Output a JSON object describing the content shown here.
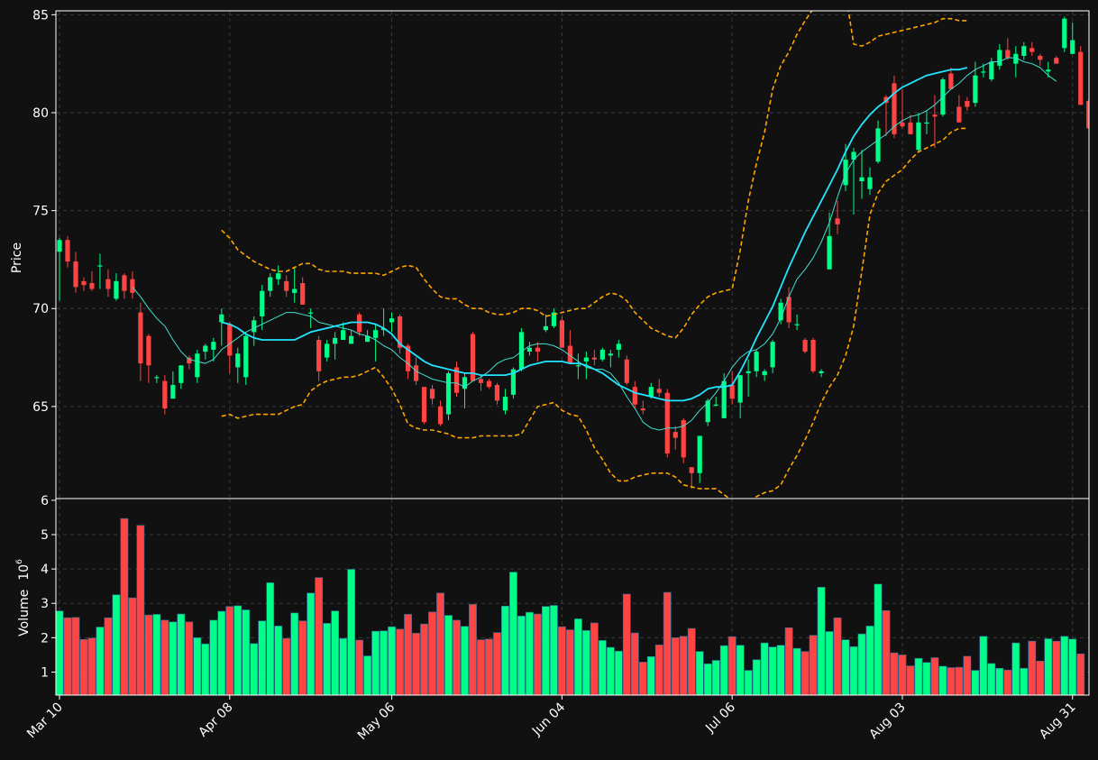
{
  "chart_data": {
    "type": "candlestick",
    "style": {
      "background": "#111111",
      "up_color": "#00ff88",
      "down_color": "#ff4444",
      "ma_fast_color": "#40e0d0",
      "ma_slow_color": "#22e5ff",
      "band_color": "#ffa500",
      "grid": true,
      "grid_style": "dashed"
    },
    "price_axis": {
      "ylabel": "Price",
      "ylim": [
        60.3,
        85.2
      ],
      "ticks": [
        "65",
        "70",
        "75",
        "80",
        "85"
      ]
    },
    "volume_axis": {
      "ylabel": "Volume",
      "ylabel_exp": "10",
      "ylabel_exp_power": "6",
      "ylim": [
        0.33,
        6.05
      ],
      "ticks": [
        "1",
        "2",
        "3",
        "4",
        "5",
        "6"
      ]
    },
    "x_axis": {
      "ticks": [
        {
          "label": "Mar 10",
          "index": 0
        },
        {
          "label": "Apr 08",
          "index": 21
        },
        {
          "label": "May 06",
          "index": 41
        },
        {
          "label": "Jun 04",
          "index": 62
        },
        {
          "label": "Jul 06",
          "index": 83
        },
        {
          "label": "Aug 03",
          "index": 104
        },
        {
          "label": "Aug 31",
          "index": 125
        }
      ]
    },
    "candles": [
      [
        72.9,
        73.6,
        70.4,
        73.5
      ],
      [
        73.5,
        73.7,
        72.1,
        72.4
      ],
      [
        72.4,
        72.9,
        70.8,
        71.1
      ],
      [
        71.4,
        71.6,
        70.9,
        71.2
      ],
      [
        71.3,
        71.9,
        70.9,
        71.0
      ],
      [
        72.2,
        72.8,
        71.0,
        72.2
      ],
      [
        71.5,
        72.0,
        70.6,
        71.0
      ],
      [
        70.5,
        71.8,
        70.4,
        71.4
      ],
      [
        71.7,
        71.8,
        70.5,
        70.9
      ],
      [
        71.5,
        71.9,
        70.5,
        70.8
      ],
      [
        69.8,
        70.3,
        66.3,
        67.2
      ],
      [
        68.6,
        68.7,
        66.2,
        67.1
      ],
      [
        66.5,
        66.6,
        66.2,
        66.5
      ],
      [
        66.3,
        66.6,
        64.6,
        64.9
      ],
      [
        65.4,
        66.8,
        65.4,
        66.1
      ],
      [
        66.2,
        67.1,
        65.9,
        67.1
      ],
      [
        67.5,
        67.6,
        66.9,
        67.2
      ],
      [
        66.5,
        67.9,
        66.2,
        67.7
      ],
      [
        67.8,
        68.2,
        67.4,
        68.1
      ],
      [
        67.9,
        68.5,
        67.3,
        68.3
      ],
      [
        69.3,
        70.0,
        68.1,
        69.7
      ],
      [
        69.2,
        69.3,
        66.7,
        67.6
      ],
      [
        67.0,
        68.0,
        66.2,
        67.7
      ],
      [
        66.5,
        68.8,
        66.1,
        68.6
      ],
      [
        68.8,
        69.6,
        68.1,
        69.4
      ],
      [
        69.6,
        71.2,
        68.9,
        70.9
      ],
      [
        70.9,
        71.8,
        70.6,
        71.6
      ],
      [
        71.5,
        72.2,
        71.2,
        71.8
      ],
      [
        71.4,
        71.7,
        70.6,
        70.9
      ],
      [
        70.8,
        72.1,
        70.3,
        71.0
      ],
      [
        71.3,
        71.6,
        70.4,
        70.2
      ],
      [
        69.8,
        70.0,
        69.0,
        69.8
      ],
      [
        68.4,
        68.6,
        66.3,
        66.8
      ],
      [
        67.5,
        68.4,
        67.3,
        68.2
      ],
      [
        68.2,
        68.8,
        67.4,
        68.5
      ],
      [
        68.4,
        69.3,
        68.4,
        68.9
      ],
      [
        68.2,
        68.9,
        68.2,
        68.6
      ],
      [
        69.7,
        69.8,
        68.6,
        68.8
      ],
      [
        68.3,
        68.9,
        68.3,
        68.6
      ],
      [
        68.5,
        69.2,
        67.3,
        68.9
      ],
      [
        68.9,
        70.0,
        68.6,
        69.0
      ],
      [
        69.3,
        69.8,
        68.8,
        69.5
      ],
      [
        69.6,
        69.7,
        67.7,
        68.0
      ],
      [
        68.1,
        68.2,
        66.4,
        66.8
      ],
      [
        67.1,
        67.5,
        66.1,
        66.3
      ],
      [
        66.0,
        66.0,
        64.1,
        64.2
      ],
      [
        65.9,
        66.1,
        65.1,
        65.4
      ],
      [
        65.0,
        65.3,
        64.0,
        64.1
      ],
      [
        64.6,
        66.8,
        64.3,
        66.7
      ],
      [
        67.0,
        67.3,
        65.5,
        65.7
      ],
      [
        65.9,
        66.7,
        64.9,
        66.5
      ],
      [
        68.7,
        68.8,
        66.3,
        66.3
      ],
      [
        66.4,
        66.6,
        65.8,
        66.2
      ],
      [
        66.3,
        66.4,
        65.9,
        66.0
      ],
      [
        66.1,
        66.2,
        65.1,
        65.3
      ],
      [
        64.8,
        65.9,
        64.6,
        65.5
      ],
      [
        65.6,
        67.0,
        65.4,
        66.9
      ],
      [
        66.9,
        69.0,
        66.8,
        68.8
      ],
      [
        67.8,
        68.3,
        67.6,
        68.0
      ],
      [
        68.0,
        68.3,
        67.3,
        67.8
      ],
      [
        68.9,
        69.7,
        68.8,
        69.1
      ],
      [
        69.1,
        70.0,
        69.0,
        69.8
      ],
      [
        69.4,
        69.6,
        68.0,
        68.0
      ],
      [
        68.1,
        68.9,
        67.4,
        67.2
      ],
      [
        67.1,
        67.7,
        66.4,
        67.1
      ],
      [
        67.3,
        67.8,
        66.4,
        67.5
      ],
      [
        67.5,
        67.9,
        67.1,
        67.4
      ],
      [
        67.4,
        68.0,
        67.3,
        67.9
      ],
      [
        67.6,
        67.9,
        67.0,
        67.7
      ],
      [
        67.9,
        68.4,
        67.5,
        68.2
      ],
      [
        67.4,
        67.6,
        66.1,
        66.2
      ],
      [
        66.0,
        66.3,
        64.9,
        65.1
      ],
      [
        64.9,
        65.3,
        64.6,
        64.8
      ],
      [
        65.5,
        66.2,
        65.4,
        66.0
      ],
      [
        65.9,
        66.4,
        65.5,
        65.7
      ],
      [
        65.7,
        65.9,
        62.4,
        62.6
      ],
      [
        63.7,
        64.0,
        62.8,
        63.4
      ],
      [
        64.3,
        64.4,
        62.1,
        62.4
      ],
      [
        61.9,
        61.9,
        60.8,
        61.6
      ],
      [
        61.6,
        63.4,
        61.1,
        63.5
      ],
      [
        64.2,
        65.4,
        64.0,
        65.3
      ],
      [
        65.1,
        65.5,
        65.0,
        65.1
      ],
      [
        64.4,
        66.7,
        64.4,
        66.3
      ],
      [
        66.1,
        66.8,
        65.1,
        65.4
      ],
      [
        65.2,
        66.6,
        64.4,
        66.6
      ],
      [
        66.7,
        67.4,
        65.5,
        66.8
      ],
      [
        66.8,
        67.9,
        66.5,
        67.8
      ],
      [
        66.6,
        66.9,
        66.3,
        66.8
      ],
      [
        67.0,
        68.4,
        66.7,
        68.3
      ],
      [
        69.4,
        70.5,
        69.2,
        70.3
      ],
      [
        70.6,
        71.1,
        69.0,
        69.3
      ],
      [
        69.2,
        69.7,
        68.9,
        69.2
      ],
      [
        68.4,
        68.5,
        67.7,
        67.8
      ],
      [
        68.4,
        68.5,
        66.7,
        66.8
      ],
      [
        66.7,
        66.9,
        66.5,
        66.8
      ],
      [
        72.0,
        74.9,
        72.0,
        73.7
      ],
      [
        74.6,
        75.5,
        73.8,
        74.3
      ],
      [
        76.3,
        78.4,
        76.0,
        77.6
      ],
      [
        77.6,
        78.2,
        74.8,
        78.0
      ],
      [
        76.5,
        78.1,
        75.6,
        76.7
      ],
      [
        76.1,
        77.2,
        75.8,
        76.7
      ],
      [
        77.5,
        79.6,
        77.4,
        79.2
      ],
      [
        80.8,
        80.9,
        78.8,
        80.5
      ],
      [
        81.5,
        81.9,
        78.7,
        78.9
      ],
      [
        79.5,
        81.2,
        79.2,
        79.3
      ],
      [
        79.5,
        79.9,
        79.1,
        78.9
      ],
      [
        78.1,
        80.0,
        78.0,
        79.5
      ],
      [
        79.5,
        80.1,
        78.9,
        79.5
      ],
      [
        79.9,
        80.9,
        78.2,
        79.8
      ],
      [
        79.9,
        81.8,
        79.8,
        81.7
      ],
      [
        82.0,
        82.3,
        81.2,
        81.2
      ],
      [
        80.3,
        80.9,
        79.6,
        79.5
      ],
      [
        80.6,
        80.8,
        80.1,
        80.3
      ],
      [
        80.5,
        82.6,
        80.3,
        81.9
      ],
      [
        82.1,
        82.5,
        81.8,
        82.1
      ],
      [
        81.7,
        82.8,
        81.6,
        82.6
      ],
      [
        82.4,
        83.5,
        82.2,
        83.2
      ],
      [
        83.2,
        83.8,
        82.7,
        82.8
      ],
      [
        82.5,
        83.4,
        81.8,
        83.0
      ],
      [
        82.9,
        83.6,
        82.7,
        83.4
      ],
      [
        83.3,
        83.6,
        82.9,
        83.1
      ],
      [
        82.9,
        83.0,
        82.4,
        82.7
      ],
      [
        82.1,
        82.6,
        81.8,
        82.2
      ],
      [
        82.8,
        82.9,
        82.6,
        82.5
      ],
      [
        83.3,
        84.9,
        83.1,
        84.8
      ],
      [
        83.0,
        84.6,
        83.0,
        83.7
      ],
      [
        83.1,
        83.4,
        80.4,
        80.4
      ],
      [
        80.6,
        80.7,
        79.2,
        79.2
      ]
    ],
    "volume_millions": [
      2.78,
      2.58,
      2.59,
      1.95,
      1.99,
      2.31,
      2.58,
      3.25,
      5.47,
      3.16,
      5.27,
      2.66,
      2.68,
      2.51,
      2.46,
      2.69,
      2.46,
      2.0,
      1.82,
      2.51,
      2.77,
      2.91,
      2.93,
      2.81,
      1.83,
      2.49,
      3.6,
      2.34,
      1.98,
      2.72,
      2.49,
      3.3,
      3.75,
      2.42,
      2.78,
      1.98,
      3.99,
      1.93,
      1.47,
      2.19,
      2.2,
      2.32,
      2.25,
      2.68,
      2.13,
      2.4,
      2.75,
      3.3,
      2.65,
      2.51,
      2.33,
      2.97,
      1.94,
      1.96,
      2.15,
      2.92,
      3.91,
      2.63,
      2.74,
      2.69,
      2.91,
      2.94,
      2.32,
      2.23,
      2.55,
      2.21,
      2.43,
      1.92,
      1.72,
      1.61,
      3.27,
      2.14,
      1.29,
      1.45,
      1.79,
      3.32,
      2.0,
      2.04,
      2.27,
      1.6,
      1.24,
      1.34,
      1.77,
      2.03,
      1.78,
      1.05,
      1.36,
      1.85,
      1.73,
      1.78,
      2.29,
      1.69,
      1.6,
      2.07,
      3.47,
      2.18,
      2.58,
      1.94,
      1.74,
      2.11,
      2.34,
      3.56,
      2.79,
      1.56,
      1.5,
      1.18,
      1.4,
      1.28,
      1.42,
      1.17,
      1.13,
      1.14,
      1.46,
      1.05,
      2.04,
      1.25,
      1.11,
      1.06,
      1.85,
      1.11,
      1.9,
      1.32,
      1.97,
      1.9,
      2.04,
      1.96,
      1.53
    ],
    "ma_fast": {
      "name": "",
      "start_index": 9,
      "values": [
        71.1,
        70.6,
        70.0,
        69.5,
        69.1,
        68.4,
        67.8,
        67.4,
        67.3,
        67.2,
        67.4,
        67.9,
        68.2,
        68.5,
        68.8,
        69.0,
        69.2,
        69.4,
        69.6,
        69.8,
        69.8,
        69.7,
        69.6,
        69.3,
        69.2,
        69.1,
        69.0,
        68.9,
        68.7,
        68.6,
        68.4,
        68.1,
        67.9,
        67.5,
        67.2,
        66.8,
        66.6,
        66.4,
        66.3,
        66.2,
        66.2,
        66.0,
        66.3,
        66.5,
        66.8,
        67.2,
        67.4,
        67.5,
        67.8,
        68.1,
        68.2,
        68.2,
        68.1,
        67.9,
        67.6,
        67.3,
        67.0,
        66.9,
        66.9,
        66.7,
        66.2,
        65.5,
        64.9,
        64.2,
        63.9,
        63.8,
        63.9,
        63.9,
        64.0,
        64.3,
        64.8,
        65.2,
        65.7,
        66.3,
        67.0,
        67.5,
        67.8,
        67.9,
        68.2,
        68.7,
        69.5,
        70.6,
        71.5,
        72.0,
        72.6,
        73.4,
        74.4,
        75.7,
        76.9,
        77.6,
        78.0,
        78.3,
        78.6,
        78.9,
        79.3,
        79.6,
        79.8,
        79.9,
        80.1,
        80.4,
        80.8,
        81.2,
        81.5,
        81.9,
        82.2,
        82.4,
        82.6,
        82.6,
        82.8,
        82.8,
        82.6,
        82.5,
        82.3,
        81.9,
        81.6
      ]
    },
    "ma_slow": {
      "name": "",
      "start_index": 20,
      "values": [
        69.3,
        69.2,
        69.0,
        68.7,
        68.5,
        68.4,
        68.4,
        68.4,
        68.4,
        68.4,
        68.6,
        68.8,
        68.9,
        69.0,
        69.1,
        69.2,
        69.3,
        69.3,
        69.3,
        69.2,
        69.0,
        68.7,
        68.2,
        67.9,
        67.6,
        67.3,
        67.1,
        67.0,
        66.9,
        66.8,
        66.7,
        66.7,
        66.6,
        66.6,
        66.6,
        66.6,
        66.7,
        66.9,
        67.1,
        67.2,
        67.3,
        67.3,
        67.3,
        67.2,
        67.2,
        67.1,
        66.9,
        66.7,
        66.4,
        66.1,
        65.9,
        65.7,
        65.6,
        65.5,
        65.4,
        65.3,
        65.3,
        65.3,
        65.4,
        65.6,
        65.9,
        66.0,
        66.0,
        66.1,
        66.8,
        67.6,
        68.5,
        69.3,
        70.1,
        71.1,
        72.1,
        73.0,
        73.9,
        74.7,
        75.5,
        76.3,
        77.1,
        78.0,
        78.8,
        79.4,
        79.9,
        80.3,
        80.6,
        81.0,
        81.3,
        81.5,
        81.7,
        81.9,
        82.0,
        82.1,
        82.2,
        82.2,
        82.3
      ]
    },
    "band_upper": {
      "name": "",
      "start_index": 20,
      "values": [
        74.0,
        73.6,
        73.0,
        72.7,
        72.4,
        72.2,
        72.0,
        71.9,
        71.9,
        72.1,
        72.3,
        72.3,
        72.0,
        71.9,
        71.9,
        71.9,
        71.8,
        71.8,
        71.8,
        71.8,
        71.7,
        71.9,
        72.1,
        72.2,
        72.1,
        71.5,
        71.0,
        70.6,
        70.5,
        70.5,
        70.2,
        70.0,
        70.0,
        69.8,
        69.7,
        69.7,
        69.8,
        70.0,
        70.0,
        69.9,
        69.6,
        69.7,
        69.8,
        69.9,
        70.0,
        70.0,
        70.3,
        70.6,
        70.8,
        70.7,
        70.4,
        69.8,
        69.4,
        69.0,
        68.8,
        68.6,
        68.5,
        69.0,
        69.7,
        70.2,
        70.6,
        70.8,
        70.9,
        71.0,
        73.0,
        75.5,
        77.4,
        79.0,
        81.2,
        82.4,
        83.1,
        84.0,
        84.7,
        85.3,
        86.2,
        87.0,
        87.8,
        86.1,
        83.5,
        83.4,
        83.6,
        83.9,
        84.0,
        84.1,
        84.2,
        84.3,
        84.4,
        84.5,
        84.6,
        84.8,
        84.8,
        84.7,
        84.7
      ]
    },
    "band_lower": {
      "name": "",
      "start_index": 20,
      "values": [
        64.5,
        64.6,
        64.4,
        64.5,
        64.6,
        64.6,
        64.6,
        64.6,
        64.8,
        65.0,
        65.1,
        65.8,
        66.1,
        66.3,
        66.4,
        66.5,
        66.5,
        66.6,
        66.8,
        67.0,
        66.5,
        65.9,
        65.1,
        64.1,
        63.9,
        63.8,
        63.8,
        63.7,
        63.6,
        63.4,
        63.4,
        63.4,
        63.5,
        63.5,
        63.5,
        63.5,
        63.5,
        63.6,
        64.3,
        65.0,
        65.1,
        65.2,
        64.8,
        64.6,
        64.5,
        63.8,
        62.9,
        62.3,
        61.6,
        61.2,
        61.2,
        61.4,
        61.5,
        61.6,
        61.6,
        61.6,
        61.4,
        61.0,
        60.9,
        60.8,
        60.8,
        60.8,
        60.5,
        60.2,
        60.0,
        60.1,
        60.4,
        60.6,
        60.7,
        61.0,
        61.8,
        62.5,
        63.3,
        64.2,
        65.2,
        66.0,
        66.6,
        67.6,
        69.1,
        71.9,
        74.8,
        75.9,
        76.5,
        76.8,
        77.1,
        77.6,
        78.0,
        78.2,
        78.4,
        78.6,
        79.0,
        79.2,
        79.2
      ]
    }
  }
}
